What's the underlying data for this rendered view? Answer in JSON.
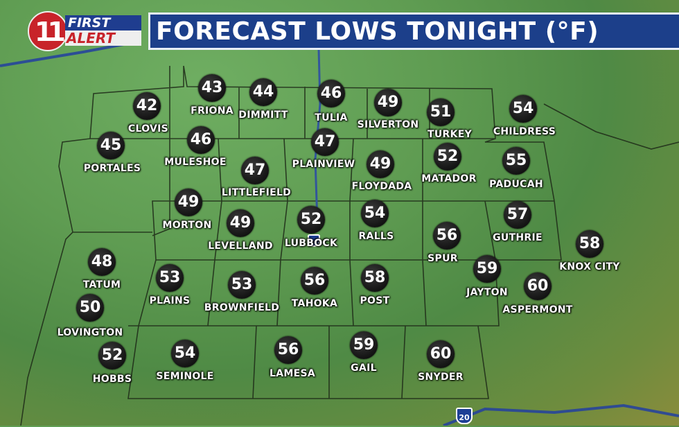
{
  "header": {
    "title": "FORECAST LOWS TONIGHT (°F)",
    "logo_text": [
      "11",
      "FIRST",
      "ALERT"
    ]
  },
  "highway_shields": [
    "20"
  ],
  "cities": [
    {
      "name": "FRIONA",
      "temp": "43"
    },
    {
      "name": "DIMMITT",
      "temp": "44"
    },
    {
      "name": "TULIA",
      "temp": "46"
    },
    {
      "name": "SILVERTON",
      "temp": "49"
    },
    {
      "name": "TURKEY",
      "temp": "51"
    },
    {
      "name": "CHILDRESS",
      "temp": "54"
    },
    {
      "name": "CLOVIS",
      "temp": "42"
    },
    {
      "name": "PORTALES",
      "temp": "45"
    },
    {
      "name": "MULESHOE",
      "temp": "46"
    },
    {
      "name": "PLAINVIEW",
      "temp": "47"
    },
    {
      "name": "LITTLEFIELD",
      "temp": "47"
    },
    {
      "name": "FLOYDADA",
      "temp": "49"
    },
    {
      "name": "MATADOR",
      "temp": "52"
    },
    {
      "name": "PADUCAH",
      "temp": "55"
    },
    {
      "name": "MORTON",
      "temp": "49"
    },
    {
      "name": "LEVELLAND",
      "temp": "49"
    },
    {
      "name": "LUBBOCK",
      "temp": "52"
    },
    {
      "name": "RALLS",
      "temp": "54"
    },
    {
      "name": "SPUR",
      "temp": "56"
    },
    {
      "name": "GUTHRIE",
      "temp": "57"
    },
    {
      "name": "KNOX CITY",
      "temp": "58"
    },
    {
      "name": "TATUM",
      "temp": "48"
    },
    {
      "name": "JAYTON",
      "temp": "59"
    },
    {
      "name": "ASPERMONT",
      "temp": "60"
    },
    {
      "name": "PLAINS",
      "temp": "53"
    },
    {
      "name": "BROWNFIELD",
      "temp": "53"
    },
    {
      "name": "TAHOKA",
      "temp": "56"
    },
    {
      "name": "POST",
      "temp": "58"
    },
    {
      "name": "LOVINGTON",
      "temp": "50"
    },
    {
      "name": "HOBBS",
      "temp": "52"
    },
    {
      "name": "SEMINOLE",
      "temp": "54"
    },
    {
      "name": "LAMESA",
      "temp": "56"
    },
    {
      "name": "GAIL",
      "temp": "59"
    },
    {
      "name": "SNYDER",
      "temp": "60"
    }
  ],
  "colors": {
    "title_bg": "#1c3f8a",
    "marker": "#1a1a1a",
    "land": "#5f9c52"
  }
}
